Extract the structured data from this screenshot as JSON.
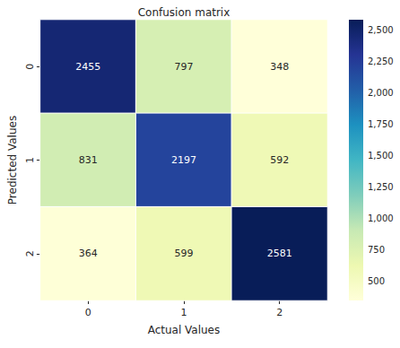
{
  "chart_data": {
    "type": "heatmap",
    "title": "Confusion matrix",
    "x_label": "Actual Values",
    "y_label": "Predicted Values",
    "x_categories": [
      "0",
      "1",
      "2"
    ],
    "y_categories": [
      "0",
      "1",
      "2"
    ],
    "cells": [
      [
        2455,
        797,
        348
      ],
      [
        831,
        2197,
        592
      ],
      [
        364,
        599,
        2581
      ]
    ],
    "data_labels": true,
    "colorbar": {
      "range": [
        348,
        2581
      ],
      "ticks": [
        500,
        750,
        1000,
        1250,
        1500,
        1750,
        2000,
        2250,
        2500
      ]
    }
  }
}
